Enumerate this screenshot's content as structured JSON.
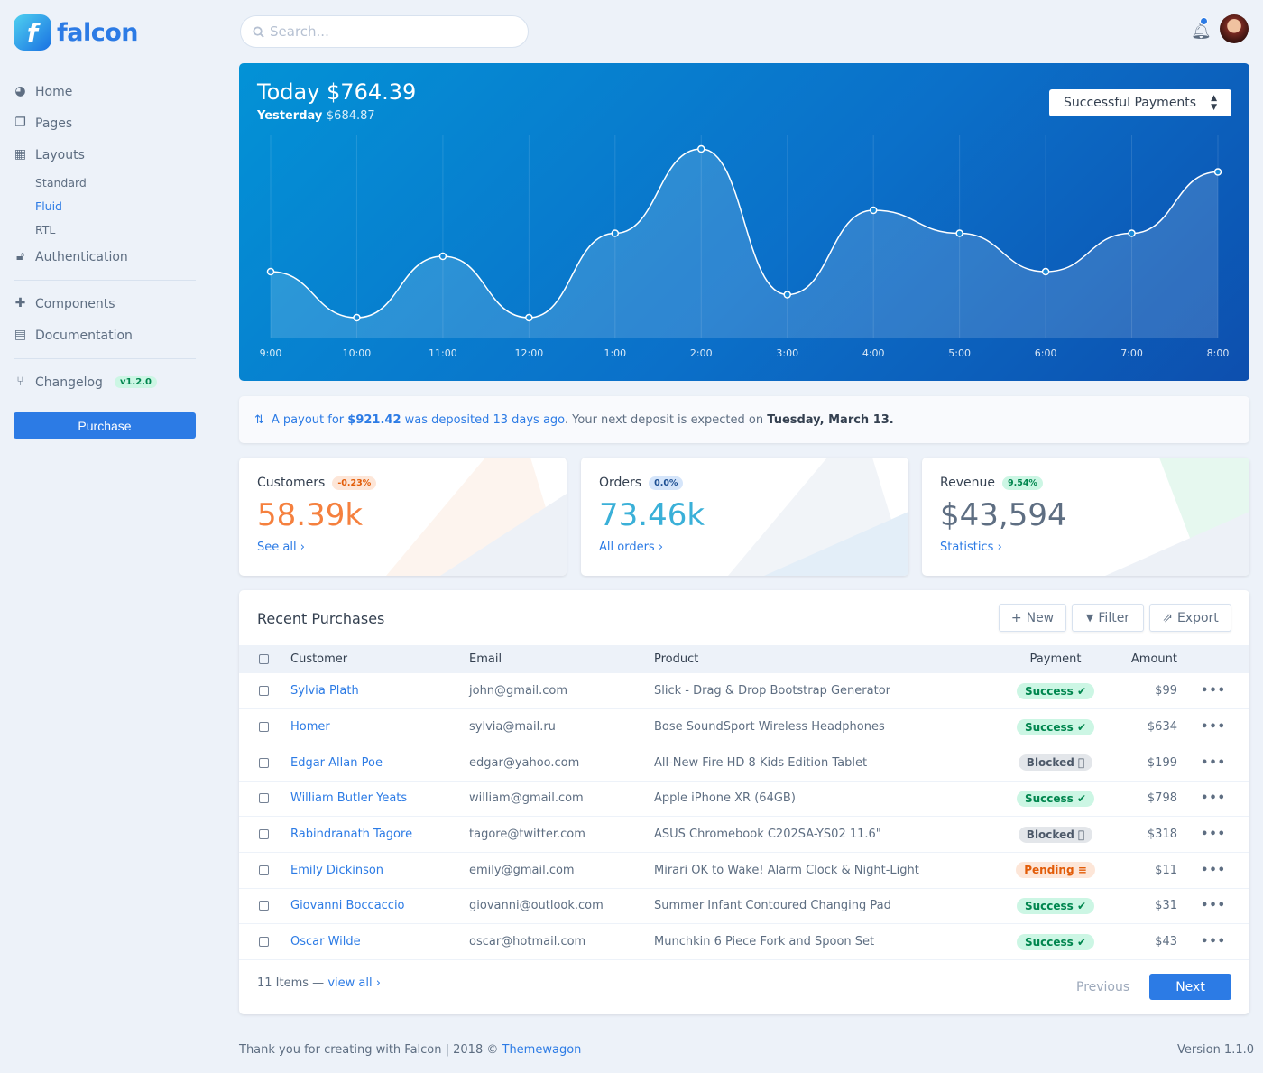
{
  "brand": {
    "name": "falcon",
    "mark": "f"
  },
  "search": {
    "placeholder": "Search..."
  },
  "sidebar": {
    "items": [
      {
        "label": "Home",
        "icon": "pie-chart-icon"
      },
      {
        "label": "Pages",
        "icon": "copy-icon"
      },
      {
        "label": "Layouts",
        "icon": "grid-icon"
      }
    ],
    "layouts_sub": [
      {
        "label": "Standard"
      },
      {
        "label": "Fluid",
        "active": true
      },
      {
        "label": "RTL"
      }
    ],
    "authentication": "Authentication",
    "components": "Components",
    "documentation": "Documentation",
    "changelog": "Changelog",
    "version_badge": "v1.2.0",
    "purchase": "Purchase"
  },
  "hero": {
    "title": "Today $764.39",
    "yesterday_label": "Yesterday",
    "yesterday_value": "$684.87",
    "select": "Successful Payments"
  },
  "chart_data": {
    "type": "area",
    "x": [
      "9:00",
      "10:00",
      "11:00",
      "12:00",
      "1:00",
      "2:00",
      "3:00",
      "4:00",
      "5:00",
      "6:00",
      "7:00",
      "8:00"
    ],
    "values": [
      4,
      1,
      5,
      1,
      6.5,
      12,
      2.5,
      8,
      6.5,
      4,
      6.5,
      10.5
    ],
    "ylim": [
      0,
      13
    ],
    "grid": "vertical"
  },
  "payout": {
    "pre": "A payout for",
    "amount": "$921.42",
    "mid": "was deposited 13 days ago",
    "post": ". Your next deposit is expected on",
    "date": "Tuesday, March 13."
  },
  "stats": [
    {
      "label": "Customers",
      "badge": "-0.23%",
      "value": "58.39k",
      "link": "See all",
      "color": "#f5803e"
    },
    {
      "label": "Orders",
      "badge": "0.0%",
      "value": "73.46k",
      "link": "All orders",
      "color": "#27bcfd"
    },
    {
      "label": "Revenue",
      "badge": "9.54%",
      "value": "$43,594",
      "link": "Statistics",
      "color": "#5e6e82"
    }
  ],
  "purchases": {
    "title": "Recent Purchases",
    "buttons": {
      "new": "New",
      "filter": "Filter",
      "export": "Export"
    },
    "columns": [
      "Customer",
      "Email",
      "Product",
      "Payment",
      "Amount"
    ],
    "rows": [
      {
        "customer": "Sylvia Plath",
        "email": "john@gmail.com",
        "product": "Slick - Drag & Drop Bootstrap Generator",
        "status": "Success",
        "amount": "$99"
      },
      {
        "customer": "Homer",
        "email": "sylvia@mail.ru",
        "product": "Bose SoundSport Wireless Headphones",
        "status": "Success",
        "amount": "$634"
      },
      {
        "customer": "Edgar Allan Poe",
        "email": "edgar@yahoo.com",
        "product": "All-New Fire HD 8 Kids Edition Tablet",
        "status": "Blocked",
        "amount": "$199"
      },
      {
        "customer": "William Butler Yeats",
        "email": "william@gmail.com",
        "product": "Apple iPhone XR (64GB)",
        "status": "Success",
        "amount": "$798"
      },
      {
        "customer": "Rabindranath Tagore",
        "email": "tagore@twitter.com",
        "product": "ASUS Chromebook C202SA-YS02 11.6\"",
        "status": "Blocked",
        "amount": "$318"
      },
      {
        "customer": "Emily Dickinson",
        "email": "emily@gmail.com",
        "product": "Mirari OK to Wake! Alarm Clock & Night-Light",
        "status": "Pending",
        "amount": "$11"
      },
      {
        "customer": "Giovanni Boccaccio",
        "email": "giovanni@outlook.com",
        "product": "Summer Infant Contoured Changing Pad",
        "status": "Success",
        "amount": "$31"
      },
      {
        "customer": "Oscar Wilde",
        "email": "oscar@hotmail.com",
        "product": "Munchkin 6 Piece Fork and Spoon Set",
        "status": "Success",
        "amount": "$43"
      }
    ],
    "count": "11 Items —",
    "view_all": "view all",
    "previous": "Previous",
    "next": "Next"
  },
  "footer": {
    "text": "Thank you for creating with Falcon | 2018 ©",
    "link": "Themewagon",
    "version": "Version 1.1.0"
  }
}
